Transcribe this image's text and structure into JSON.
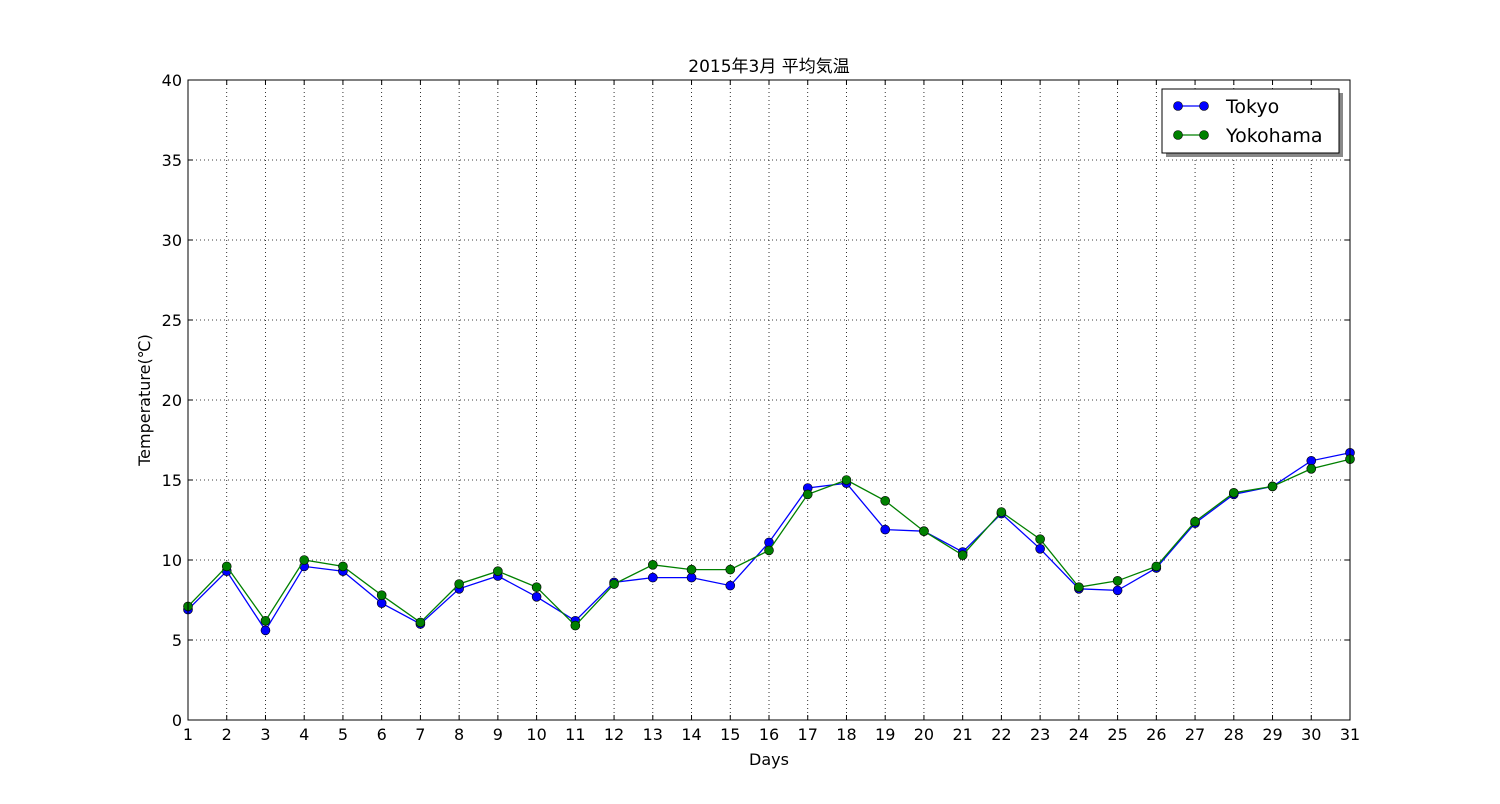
{
  "chart_data": {
    "type": "line",
    "title": "2015年3月  平均気温",
    "xlabel": "Days",
    "ylabel": "Temperature(℃)",
    "xlim": [
      1,
      31
    ],
    "ylim": [
      0,
      40
    ],
    "x_ticks": [
      "1",
      "2",
      "3",
      "4",
      "5",
      "6",
      "7",
      "8",
      "9",
      "10",
      "11",
      "12",
      "13",
      "14",
      "15",
      "16",
      "17",
      "18",
      "19",
      "20",
      "21",
      "22",
      "23",
      "24",
      "25",
      "26",
      "27",
      "28",
      "29",
      "30",
      "31"
    ],
    "y_ticks": [
      "0",
      "5",
      "10",
      "15",
      "20",
      "25",
      "30",
      "35",
      "40"
    ],
    "grid": true,
    "legend_position": "top-right",
    "x": [
      1,
      2,
      3,
      4,
      5,
      6,
      7,
      8,
      9,
      10,
      11,
      12,
      13,
      14,
      15,
      16,
      17,
      18,
      19,
      20,
      21,
      22,
      23,
      24,
      25,
      26,
      27,
      28,
      29,
      30,
      31
    ],
    "series": [
      {
        "name": "Tokyo",
        "color": "#0000ff",
        "values": [
          6.9,
          9.3,
          5.6,
          9.6,
          9.3,
          7.3,
          6.0,
          8.2,
          9.0,
          7.7,
          6.2,
          8.6,
          8.9,
          8.9,
          8.4,
          11.1,
          14.5,
          14.8,
          11.9,
          11.8,
          10.5,
          12.9,
          10.7,
          8.2,
          8.1,
          9.5,
          12.3,
          14.1,
          14.6,
          16.2,
          16.7
        ]
      },
      {
        "name": "Yokohama",
        "color": "#008000",
        "values": [
          7.1,
          9.6,
          6.2,
          10.0,
          9.6,
          7.8,
          6.1,
          8.5,
          9.3,
          8.3,
          5.9,
          8.5,
          9.7,
          9.4,
          9.4,
          10.6,
          14.1,
          15.0,
          13.7,
          11.8,
          10.3,
          13.0,
          11.3,
          8.3,
          8.7,
          9.6,
          12.4,
          14.2,
          14.6,
          15.7,
          16.3
        ]
      }
    ]
  }
}
